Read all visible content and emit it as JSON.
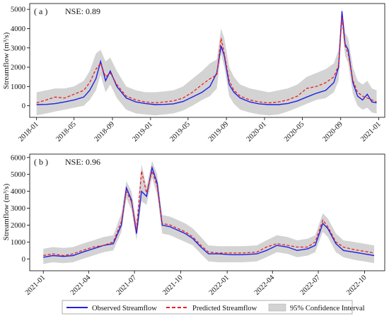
{
  "legend": {
    "placement": "bottom-center",
    "entries": [
      {
        "label": "Observed Streamflow",
        "color": "#1f1fe6",
        "style": "solid"
      },
      {
        "label": "Predicted Streamflow",
        "color": "#ef1f1f",
        "style": "dashed"
      },
      {
        "label": "95% Confidence Interval",
        "color": "#d3d3d3",
        "style": "band"
      }
    ]
  },
  "chart_data": [
    {
      "type": "line",
      "panel_label": "( a )",
      "annotation": "NSE: 0.89",
      "ylabel": "Streamflow (m³/s)",
      "xlabel": "",
      "ylim": [
        -600,
        5300
      ],
      "xlim": [
        "2017-12-10",
        "2021-01-20"
      ],
      "yticks": [
        0,
        1000,
        2000,
        3000,
        4000,
        5000
      ],
      "xtick_labels": [
        "2018-01",
        "2018-05",
        "2018-09",
        "2019-01",
        "2019-05",
        "2019-09",
        "2020-01",
        "2020-05",
        "2020-09",
        "2021-01"
      ],
      "grid": false,
      "dates": [
        "2018-01-01",
        "2018-02-01",
        "2018-03-01",
        "2018-04-01",
        "2018-05-01",
        "2018-06-01",
        "2018-06-20",
        "2018-07-10",
        "2018-07-25",
        "2018-08-10",
        "2018-08-25",
        "2018-09-15",
        "2018-10-15",
        "2018-11-15",
        "2018-12-15",
        "2019-01-15",
        "2019-02-15",
        "2019-03-15",
        "2019-04-15",
        "2019-05-15",
        "2019-06-15",
        "2019-07-10",
        "2019-08-01",
        "2019-08-15",
        "2019-08-25",
        "2019-09-10",
        "2019-09-25",
        "2019-10-15",
        "2019-11-15",
        "2019-12-15",
        "2020-01-15",
        "2020-02-15",
        "2020-03-15",
        "2020-04-15",
        "2020-05-15",
        "2020-06-15",
        "2020-07-15",
        "2020-08-10",
        "2020-08-25",
        "2020-09-05",
        "2020-09-15",
        "2020-09-25",
        "2020-10-10",
        "2020-10-25",
        "2020-11-10",
        "2020-11-25",
        "2020-12-10",
        "2020-12-25"
      ],
      "series": [
        {
          "name": "Observed Streamflow",
          "color": "#1f1fe6",
          "values": [
            60,
            70,
            110,
            200,
            300,
            450,
            800,
            1400,
            2300,
            1300,
            1800,
            1000,
            400,
            200,
            120,
            60,
            70,
            100,
            220,
            450,
            700,
            1000,
            1700,
            3100,
            2600,
            1100,
            700,
            400,
            200,
            100,
            60,
            60,
            120,
            250,
            450,
            650,
            800,
            1200,
            2000,
            4900,
            3200,
            2900,
            1200,
            500,
            300,
            600,
            200,
            150
          ]
        },
        {
          "name": "Predicted Streamflow",
          "color": "#ef1f1f",
          "values": [
            150,
            300,
            450,
            400,
            600,
            800,
            1200,
            1900,
            2200,
            1500,
            1700,
            1100,
            500,
            300,
            200,
            150,
            200,
            250,
            400,
            700,
            1100,
            1400,
            1600,
            3500,
            2700,
            1300,
            800,
            500,
            300,
            200,
            150,
            200,
            300,
            500,
            900,
            1000,
            1200,
            1500,
            2100,
            4600,
            3100,
            2700,
            1300,
            700,
            500,
            400,
            300,
            200
          ]
        },
        {
          "name": "95% Confidence Interval (lower)",
          "color": "#d3d3d3",
          "values": [
            -500,
            -400,
            -300,
            -200,
            -100,
            0,
            300,
            800,
            1600,
            700,
            1100,
            400,
            -200,
            -400,
            -450,
            -500,
            -450,
            -400,
            -250,
            0,
            300,
            500,
            900,
            2700,
            2000,
            500,
            100,
            -200,
            -350,
            -450,
            -500,
            -450,
            -300,
            -100,
            100,
            300,
            400,
            700,
            1300,
            4200,
            2600,
            2200,
            600,
            0,
            -200,
            -100,
            -350,
            -400
          ]
        },
        {
          "name": "95% Confidence Interval (upper)",
          "color": "#d3d3d3",
          "values": [
            700,
            800,
            900,
            900,
            1000,
            1300,
            1800,
            2700,
            2900,
            2300,
            2500,
            1800,
            1000,
            800,
            700,
            700,
            750,
            800,
            1000,
            1400,
            1800,
            2200,
            2400,
            4000,
            3500,
            2000,
            1500,
            1100,
            900,
            800,
            700,
            800,
            900,
            1100,
            1500,
            1700,
            1900,
            2200,
            2900,
            5100,
            3800,
            3500,
            2000,
            1300,
            1100,
            1300,
            900,
            800
          ]
        }
      ]
    },
    {
      "type": "line",
      "panel_label": "( b )",
      "annotation": "NSE: 0.96",
      "ylabel": "Streamflow (m³/s)",
      "xlabel": "",
      "ylim": [
        -700,
        6200
      ],
      "xlim": [
        "2020-12-05",
        "2022-11-10"
      ],
      "yticks": [
        0,
        1000,
        2000,
        3000,
        4000,
        5000,
        6000
      ],
      "xtick_labels": [
        "2021-01",
        "2021-04",
        "2021-07",
        "2021-10",
        "2022-01",
        "2022-04",
        "2022-07",
        "2022-10"
      ],
      "grid": false,
      "dates": [
        "2021-01-01",
        "2021-01-20",
        "2021-02-10",
        "2021-03-01",
        "2021-03-20",
        "2021-04-10",
        "2021-05-01",
        "2021-05-20",
        "2021-06-05",
        "2021-06-15",
        "2021-06-25",
        "2021-07-05",
        "2021-07-15",
        "2021-07-25",
        "2021-08-05",
        "2021-08-15",
        "2021-08-25",
        "2021-09-10",
        "2021-09-25",
        "2021-10-10",
        "2021-10-25",
        "2021-11-10",
        "2021-11-25",
        "2021-12-15",
        "2022-01-10",
        "2022-02-01",
        "2022-03-01",
        "2022-03-20",
        "2022-04-10",
        "2022-05-01",
        "2022-05-20",
        "2022-06-10",
        "2022-06-25",
        "2022-07-10",
        "2022-07-20",
        "2022-08-05",
        "2022-08-20",
        "2022-09-10",
        "2022-09-30",
        "2022-10-20"
      ],
      "series": [
        {
          "name": "Observed Streamflow",
          "color": "#1f1fe6",
          "values": [
            100,
            200,
            150,
            200,
            400,
            600,
            800,
            900,
            2000,
            4200,
            3500,
            1500,
            4000,
            3700,
            5400,
            4500,
            2000,
            1900,
            1700,
            1500,
            1200,
            700,
            300,
            300,
            250,
            250,
            300,
            500,
            800,
            700,
            500,
            600,
            800,
            2100,
            1800,
            900,
            500,
            400,
            300,
            200
          ]
        },
        {
          "name": "Predicted Streamflow",
          "color": "#ef1f1f",
          "values": [
            200,
            300,
            200,
            300,
            500,
            700,
            800,
            1000,
            2200,
            4000,
            3400,
            1700,
            5200,
            3900,
            5200,
            4300,
            2100,
            2000,
            1800,
            1600,
            1300,
            800,
            400,
            350,
            350,
            350,
            400,
            700,
            900,
            800,
            700,
            700,
            1000,
            2300,
            1900,
            1000,
            700,
            550,
            450,
            350
          ]
        },
        {
          "name": "95% Confidence Interval (lower)",
          "color": "#d3d3d3",
          "values": [
            -300,
            -200,
            -250,
            -200,
            0,
            200,
            400,
            500,
            1600,
            3600,
            2900,
            1100,
            3400,
            3200,
            4800,
            3800,
            1500,
            1400,
            1200,
            1000,
            800,
            300,
            -150,
            -200,
            -200,
            -200,
            -150,
            100,
            400,
            300,
            100,
            200,
            400,
            1600,
            1300,
            400,
            100,
            -50,
            -150,
            -250
          ]
        },
        {
          "name": "95% Confidence Interval (upper)",
          "color": "#d3d3d3",
          "values": [
            600,
            700,
            650,
            700,
            900,
            1100,
            1300,
            1400,
            2700,
            4600,
            4000,
            2200,
            5600,
            4300,
            5800,
            5000,
            2600,
            2500,
            2300,
            2100,
            1800,
            1300,
            800,
            750,
            750,
            750,
            800,
            1100,
            1400,
            1300,
            1100,
            1200,
            1400,
            2700,
            2400,
            1500,
            1100,
            1000,
            900,
            800
          ]
        }
      ]
    }
  ]
}
